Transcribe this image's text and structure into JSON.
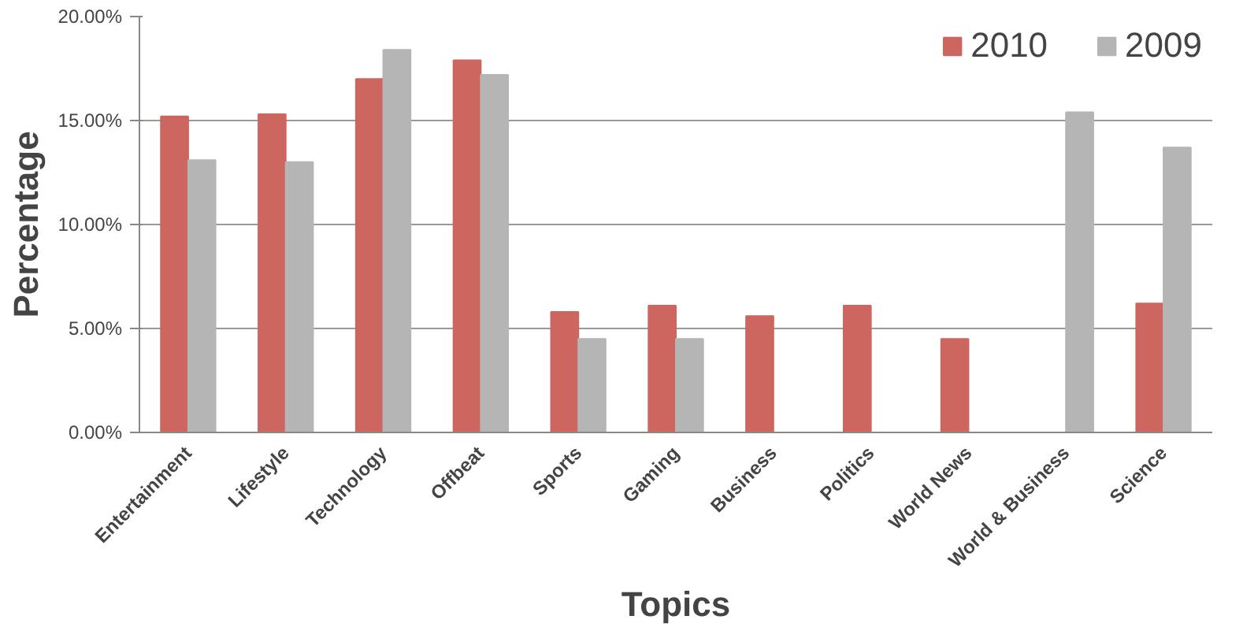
{
  "chart_data": {
    "type": "bar",
    "xlabel": "Topics",
    "ylabel": "Percentage",
    "categories": [
      "Entertainment",
      "Lifestyle",
      "Technology",
      "Offbeat",
      "Sports",
      "Gaming",
      "Business",
      "Politics",
      "World News",
      "World & Business",
      "Science"
    ],
    "series": [
      {
        "name": "2010",
        "color": "#cd665f",
        "values": [
          15.2,
          15.3,
          17.0,
          17.9,
          5.8,
          6.1,
          5.6,
          6.1,
          4.5,
          null,
          6.2
        ]
      },
      {
        "name": "2009",
        "color": "#b5b5b5",
        "values": [
          13.1,
          13.0,
          18.4,
          17.2,
          4.5,
          4.5,
          null,
          null,
          null,
          15.4,
          13.7
        ]
      }
    ],
    "ylim": [
      0,
      20
    ],
    "yticks": [
      {
        "value": 0,
        "label": "0.00%"
      },
      {
        "value": 5,
        "label": "5.00%"
      },
      {
        "value": 10,
        "label": "10.00%"
      },
      {
        "value": 15,
        "label": "15.00%"
      },
      {
        "value": 20,
        "label": "20.00%"
      }
    ],
    "grid": "y",
    "legend": "top right"
  }
}
